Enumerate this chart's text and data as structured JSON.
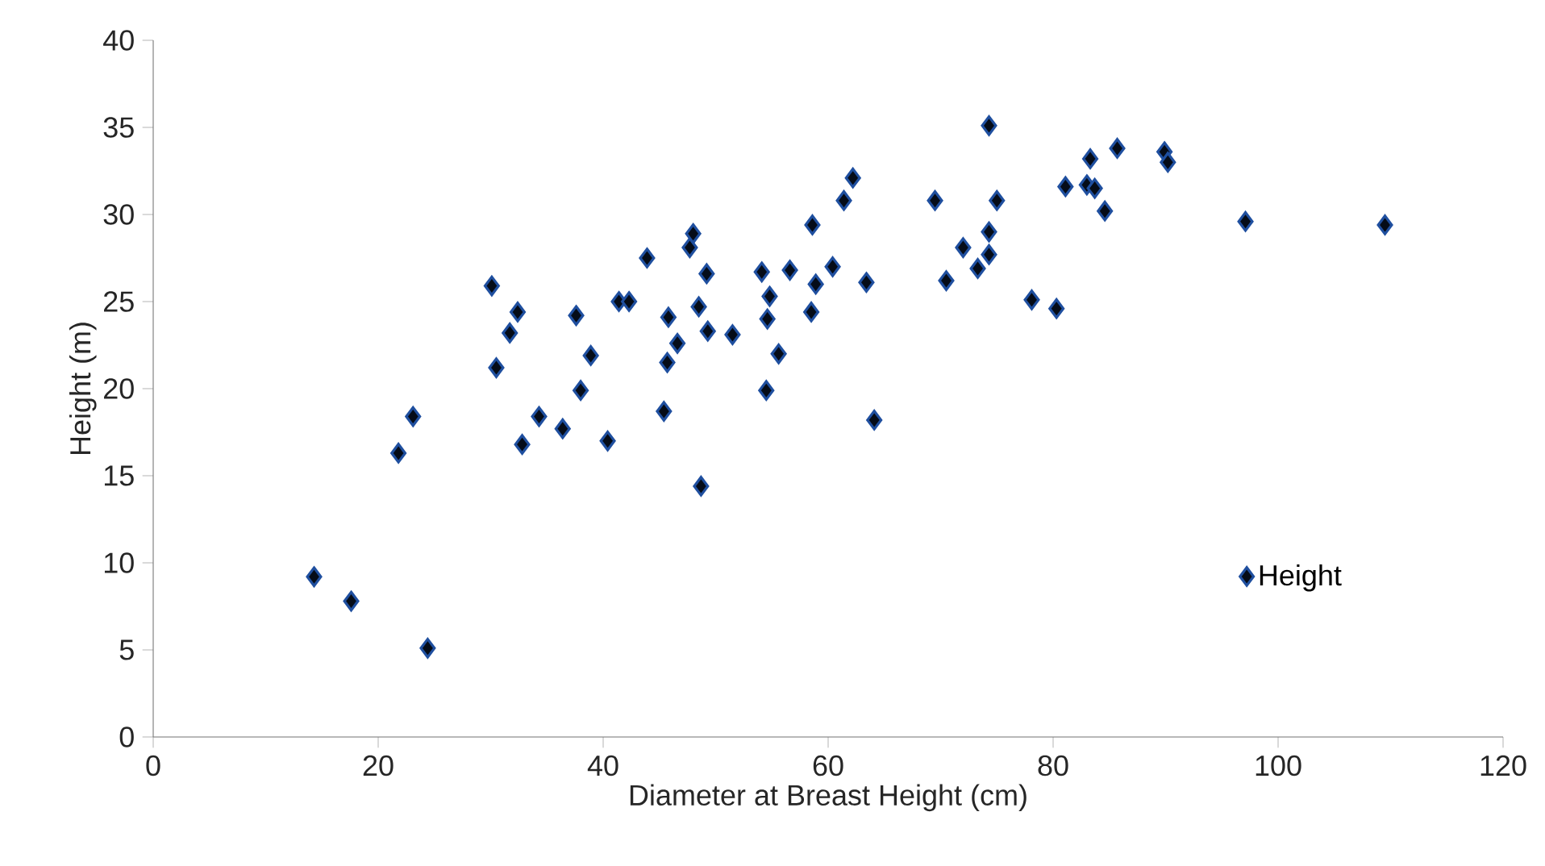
{
  "chart_data": {
    "type": "scatter",
    "xlabel": "Diameter at Breast Height (cm)",
    "ylabel": "Height (m)",
    "xlim": [
      0,
      120
    ],
    "ylim": [
      0,
      40
    ],
    "xticks": [
      0,
      20,
      40,
      60,
      80,
      100,
      120
    ],
    "yticks": [
      0,
      5,
      10,
      15,
      20,
      25,
      30,
      35,
      40
    ],
    "marker": "diamond",
    "legend": "bottom right",
    "grid": false,
    "series": [
      {
        "name": "Height",
        "color": "#1f4f9f",
        "x": [
          14.3,
          17.6,
          24.4,
          21.8,
          23.1,
          30.1,
          30.5,
          31.7,
          32.4,
          32.8,
          34.3,
          36.4,
          37.6,
          38.0,
          38.9,
          40.4,
          41.4,
          42.3,
          43.9,
          45.4,
          45.7,
          45.8,
          46.6,
          47.7,
          48.0,
          48.5,
          48.7,
          49.2,
          49.3,
          51.5,
          54.5,
          55.6,
          64.1,
          54.1,
          56.6,
          54.8,
          54.6,
          58.9,
          58.5,
          60.4,
          63.4,
          58.6,
          61.4,
          62.2,
          69.5,
          75.0,
          72.0,
          74.3,
          74.3,
          73.3,
          70.5,
          78.1,
          80.3,
          83.3,
          81.1,
          83.0,
          83.7,
          84.6,
          74.3,
          85.7,
          89.9,
          90.2,
          97.1,
          109.5
        ],
        "values": [
          9.2,
          7.8,
          5.1,
          16.3,
          18.4,
          25.9,
          21.2,
          23.2,
          24.4,
          16.8,
          18.4,
          17.7,
          24.2,
          19.9,
          21.9,
          17.0,
          25.0,
          25.0,
          27.5,
          18.7,
          21.5,
          24.1,
          22.6,
          28.1,
          28.9,
          24.7,
          14.4,
          26.6,
          23.3,
          23.1,
          19.9,
          22.0,
          18.2,
          26.7,
          26.8,
          25.3,
          24.0,
          26.0,
          24.4,
          27.0,
          26.1,
          29.4,
          30.8,
          32.1,
          30.8,
          30.8,
          28.1,
          29.0,
          27.7,
          26.9,
          26.2,
          25.1,
          24.6,
          33.2,
          31.6,
          31.7,
          31.5,
          30.2,
          35.1,
          33.8,
          33.6,
          33.0,
          29.6,
          29.4
        ]
      }
    ]
  }
}
